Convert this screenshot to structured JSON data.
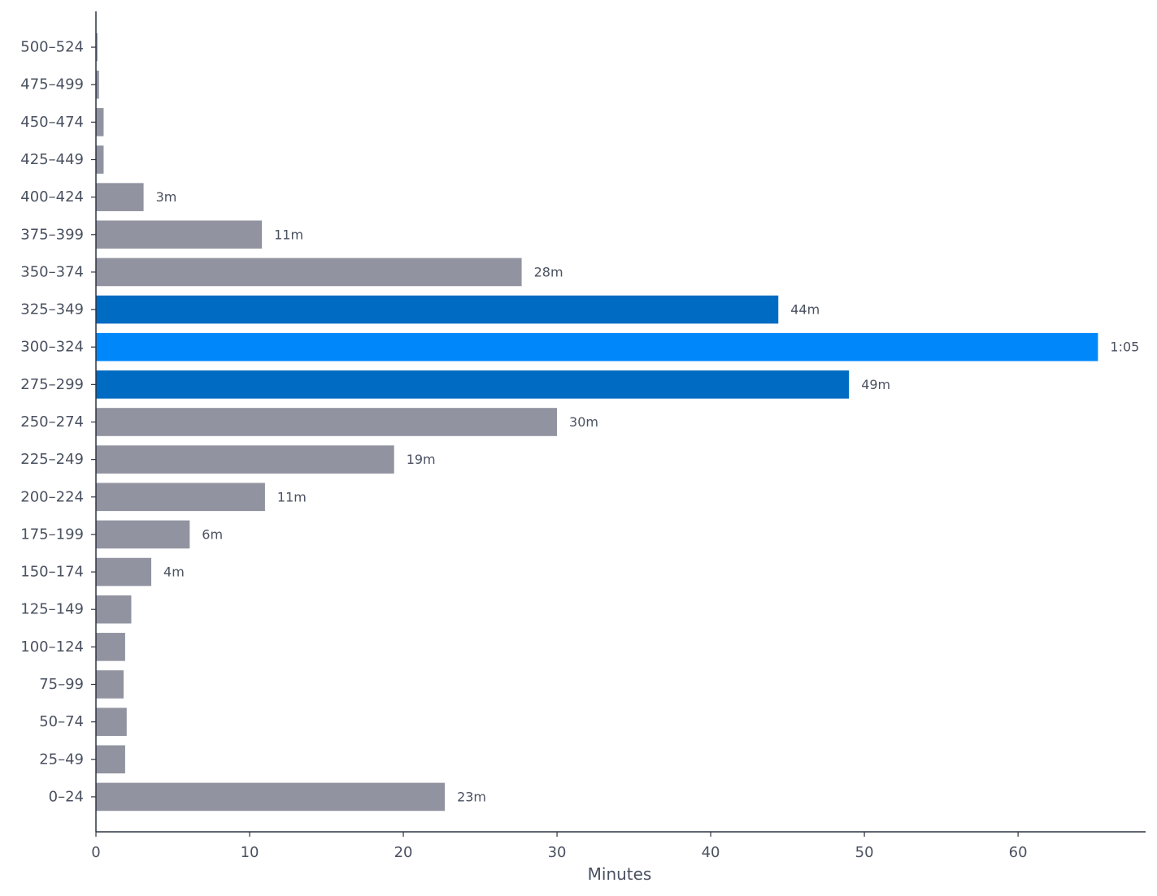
{
  "chart_data": {
    "type": "bar",
    "orientation": "horizontal",
    "xlabel": "Minutes",
    "ylabel": "",
    "xlim": [
      0,
      68.3
    ],
    "x_ticks": [
      0,
      10,
      20,
      30,
      40,
      50,
      60
    ],
    "grid": false,
    "categories": [
      "0–24",
      "25–49",
      "50–74",
      "75–99",
      "100–124",
      "125–149",
      "150–174",
      "175–199",
      "200–224",
      "225–249",
      "250–274",
      "275–299",
      "300–324",
      "325–349",
      "350–374",
      "375–399",
      "400–424",
      "425–449",
      "450–474",
      "475–499",
      "500–524"
    ],
    "values": [
      22.7,
      1.9,
      2.0,
      1.8,
      1.9,
      2.3,
      3.6,
      6.1,
      11.0,
      19.4,
      30.0,
      49.0,
      65.2,
      44.4,
      27.7,
      10.8,
      3.1,
      0.5,
      0.5,
      0.2,
      0.1
    ],
    "data_labels": [
      "23m",
      "",
      "",
      "",
      "",
      "",
      "4m",
      "6m",
      "11m",
      "19m",
      "30m",
      "49m",
      "1:05",
      "44m",
      "28m",
      "11m",
      "3m",
      "",
      "",
      "",
      ""
    ],
    "bar_colors": [
      "#9193a0",
      "#9193a0",
      "#9193a0",
      "#9193a0",
      "#9193a0",
      "#9193a0",
      "#9193a0",
      "#9193a0",
      "#9193a0",
      "#9193a0",
      "#9193a0",
      "#006bc2",
      "#0088fb",
      "#006bc2",
      "#9193a0",
      "#9193a0",
      "#9193a0",
      "#9193a0",
      "#9193a0",
      "#9193a0",
      "#9193a0"
    ],
    "colors": {
      "default": "#9193a0",
      "highlight": "#0088fb",
      "adjacent": "#006bc2"
    }
  }
}
